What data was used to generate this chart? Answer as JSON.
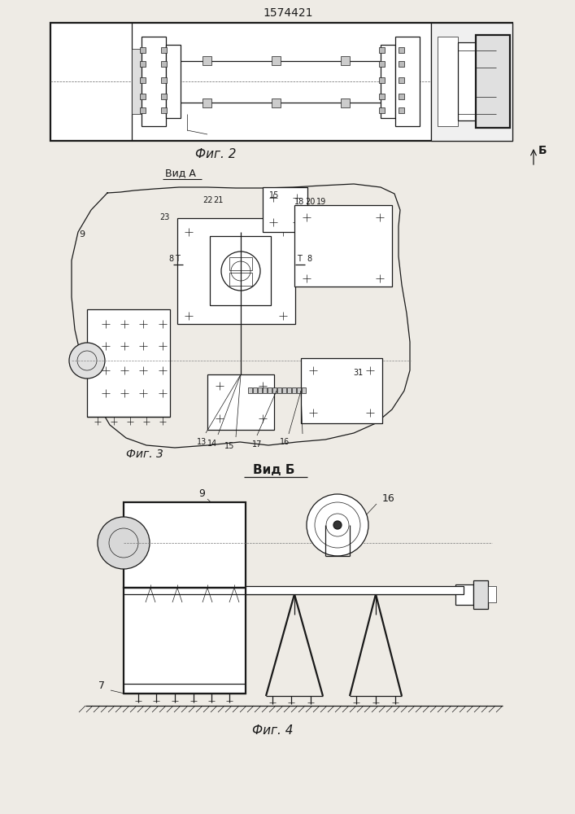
{
  "patent_number": "1574421",
  "fig2_label": "Фиг. 2",
  "fig3_label": "Фиг. 3",
  "fig4_label": "Фиг. 4",
  "view_a_label": "Вид А",
  "view_b_label": "Вид Б",
  "arrow_b_label": "Б",
  "bg_color": "#eeebe5",
  "line_color": "#1a1a1a",
  "lw": 0.9,
  "lw_thick": 1.6,
  "lw_thin": 0.5
}
